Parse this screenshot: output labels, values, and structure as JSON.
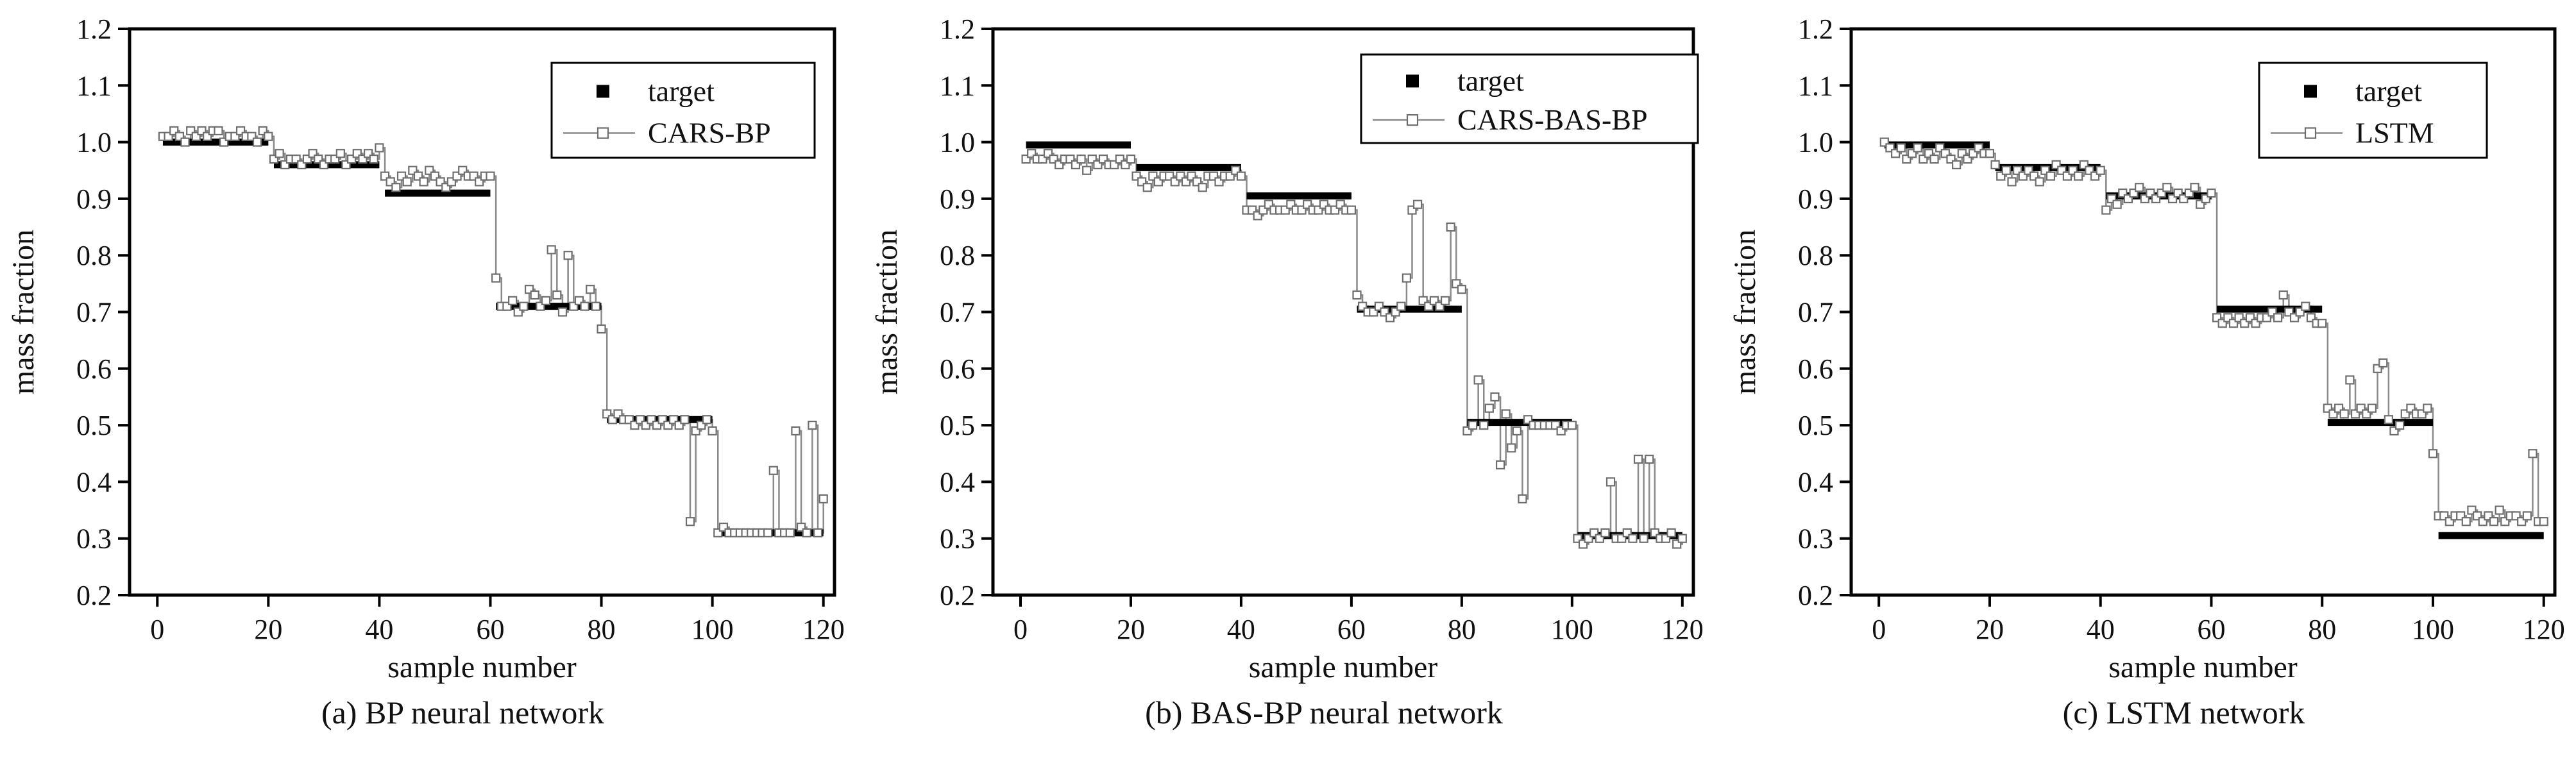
{
  "chart_data": [
    {
      "type": "line",
      "caption": "(a) BP neural network",
      "xlabel": "sample number",
      "ylabel": "mass fraction",
      "xlim": [
        -5,
        122
      ],
      "ylim": [
        0.2,
        1.2
      ],
      "xticks": [
        "0",
        "20",
        "40",
        "60",
        "80",
        "100",
        "120"
      ],
      "yticks": [
        "0.2",
        "0.3",
        "0.4",
        "0.5",
        "0.6",
        "0.7",
        "0.8",
        "0.9",
        "1.0",
        "1.1",
        "1.2"
      ],
      "legend_position": "top-right",
      "target": {
        "name": "target",
        "segments": [
          {
            "x_start": 1,
            "x_end": 20,
            "y": 1.0
          },
          {
            "x_start": 21,
            "x_end": 40,
            "y": 0.96
          },
          {
            "x_start": 41,
            "x_end": 60,
            "y": 0.91
          },
          {
            "x_start": 61,
            "x_end": 80,
            "y": 0.71
          },
          {
            "x_start": 81,
            "x_end": 100,
            "y": 0.51
          },
          {
            "x_start": 101,
            "x_end": 120,
            "y": 0.31
          }
        ]
      },
      "prediction": {
        "name": "CARS-BP",
        "x_start": 1,
        "values": [
          1.01,
          1.01,
          1.02,
          1.01,
          1.0,
          1.02,
          1.01,
          1.02,
          1.01,
          1.02,
          1.02,
          1.0,
          1.01,
          1.01,
          1.02,
          1.01,
          1.01,
          1.0,
          1.02,
          1.01,
          0.97,
          0.98,
          0.96,
          0.97,
          0.97,
          0.96,
          0.97,
          0.98,
          0.97,
          0.96,
          0.97,
          0.97,
          0.98,
          0.96,
          0.97,
          0.98,
          0.97,
          0.98,
          0.97,
          0.99,
          0.94,
          0.93,
          0.92,
          0.94,
          0.93,
          0.95,
          0.94,
          0.93,
          0.95,
          0.94,
          0.93,
          0.92,
          0.93,
          0.94,
          0.95,
          0.94,
          0.94,
          0.93,
          0.94,
          0.94,
          0.76,
          0.71,
          0.71,
          0.72,
          0.7,
          0.71,
          0.74,
          0.73,
          0.71,
          0.72,
          0.81,
          0.73,
          0.7,
          0.8,
          0.71,
          0.72,
          0.71,
          0.74,
          0.71,
          0.67,
          0.52,
          0.51,
          0.52,
          0.51,
          0.51,
          0.5,
          0.51,
          0.5,
          0.51,
          0.5,
          0.51,
          0.5,
          0.51,
          0.5,
          0.51,
          0.33,
          0.49,
          0.5,
          0.51,
          0.49,
          0.31,
          0.32,
          0.31,
          0.31,
          0.31,
          0.31,
          0.31,
          0.31,
          0.31,
          0.31,
          0.42,
          0.31,
          0.31,
          0.31,
          0.49,
          0.32,
          0.31,
          0.5,
          0.31,
          0.37
        ]
      }
    },
    {
      "type": "line",
      "caption": "(b) BAS-BP neural network",
      "xlabel": "sample number",
      "ylabel": "mass fraction",
      "xlim": [
        -5,
        122
      ],
      "ylim": [
        0.2,
        1.2
      ],
      "xticks": [
        "0",
        "20",
        "40",
        "60",
        "80",
        "100",
        "120"
      ],
      "yticks": [
        "0.2",
        "0.3",
        "0.4",
        "0.5",
        "0.6",
        "0.7",
        "0.8",
        "0.9",
        "1.0",
        "1.1",
        "1.2"
      ],
      "legend_position": "top-right",
      "target": {
        "name": "target",
        "segments": [
          {
            "x_start": 1,
            "x_end": 20,
            "y": 0.995
          },
          {
            "x_start": 21,
            "x_end": 40,
            "y": 0.955
          },
          {
            "x_start": 41,
            "x_end": 60,
            "y": 0.905
          },
          {
            "x_start": 61,
            "x_end": 80,
            "y": 0.705
          },
          {
            "x_start": 81,
            "x_end": 100,
            "y": 0.505
          },
          {
            "x_start": 101,
            "x_end": 120,
            "y": 0.305
          }
        ]
      },
      "prediction": {
        "name": "CARS-BAS-BP",
        "x_start": 1,
        "values": [
          0.97,
          0.98,
          0.97,
          0.97,
          0.98,
          0.97,
          0.96,
          0.97,
          0.97,
          0.96,
          0.97,
          0.95,
          0.97,
          0.96,
          0.97,
          0.96,
          0.96,
          0.97,
          0.96,
          0.97,
          0.94,
          0.93,
          0.92,
          0.94,
          0.93,
          0.94,
          0.94,
          0.93,
          0.94,
          0.93,
          0.94,
          0.93,
          0.92,
          0.94,
          0.94,
          0.93,
          0.94,
          0.94,
          0.95,
          0.94,
          0.88,
          0.88,
          0.87,
          0.88,
          0.89,
          0.88,
          0.88,
          0.88,
          0.89,
          0.88,
          0.88,
          0.89,
          0.88,
          0.88,
          0.89,
          0.88,
          0.88,
          0.89,
          0.88,
          0.88,
          0.73,
          0.71,
          0.7,
          0.7,
          0.71,
          0.7,
          0.69,
          0.7,
          0.71,
          0.76,
          0.88,
          0.89,
          0.72,
          0.71,
          0.72,
          0.71,
          0.72,
          0.85,
          0.75,
          0.74,
          0.49,
          0.5,
          0.58,
          0.5,
          0.53,
          0.55,
          0.43,
          0.52,
          0.46,
          0.49,
          0.37,
          0.51,
          0.5,
          0.5,
          0.5,
          0.5,
          0.5,
          0.49,
          0.5,
          0.5,
          0.3,
          0.29,
          0.3,
          0.31,
          0.3,
          0.31,
          0.4,
          0.3,
          0.3,
          0.31,
          0.3,
          0.44,
          0.3,
          0.44,
          0.31,
          0.3,
          0.3,
          0.31,
          0.29,
          0.3
        ]
      }
    },
    {
      "type": "line",
      "caption": "(c) LSTM network",
      "xlabel": "sample number",
      "ylabel": "mass fraction",
      "xlim": [
        -5,
        122
      ],
      "ylim": [
        0.2,
        1.2
      ],
      "xticks": [
        "0",
        "20",
        "40",
        "60",
        "80",
        "100",
        "120"
      ],
      "yticks": [
        "0.2",
        "0.3",
        "0.4",
        "0.5",
        "0.6",
        "0.7",
        "0.8",
        "0.9",
        "1.0",
        "1.1",
        "1.2"
      ],
      "legend_position": "top-right",
      "target": {
        "name": "target",
        "segments": [
          {
            "x_start": 1,
            "x_end": 20,
            "y": 0.995
          },
          {
            "x_start": 21,
            "x_end": 40,
            "y": 0.955
          },
          {
            "x_start": 41,
            "x_end": 60,
            "y": 0.905
          },
          {
            "x_start": 61,
            "x_end": 80,
            "y": 0.705
          },
          {
            "x_start": 81,
            "x_end": 100,
            "y": 0.505
          },
          {
            "x_start": 101,
            "x_end": 120,
            "y": 0.305
          }
        ]
      },
      "prediction": {
        "name": "LSTM",
        "x_start": 1,
        "values": [
          1.0,
          0.99,
          0.98,
          0.99,
          0.97,
          0.98,
          0.99,
          0.97,
          0.98,
          0.97,
          0.99,
          0.98,
          0.97,
          0.96,
          0.98,
          0.97,
          0.98,
          0.99,
          0.98,
          0.98,
          0.96,
          0.94,
          0.95,
          0.93,
          0.95,
          0.94,
          0.95,
          0.94,
          0.93,
          0.95,
          0.94,
          0.96,
          0.95,
          0.94,
          0.95,
          0.94,
          0.96,
          0.95,
          0.94,
          0.95,
          0.88,
          0.9,
          0.89,
          0.91,
          0.9,
          0.91,
          0.92,
          0.9,
          0.91,
          0.9,
          0.91,
          0.92,
          0.9,
          0.91,
          0.9,
          0.91,
          0.92,
          0.89,
          0.9,
          0.91,
          0.69,
          0.68,
          0.69,
          0.68,
          0.69,
          0.68,
          0.69,
          0.68,
          0.69,
          0.69,
          0.7,
          0.69,
          0.73,
          0.7,
          0.69,
          0.7,
          0.71,
          0.69,
          0.68,
          0.68,
          0.53,
          0.52,
          0.53,
          0.52,
          0.58,
          0.52,
          0.53,
          0.52,
          0.53,
          0.6,
          0.61,
          0.51,
          0.49,
          0.5,
          0.52,
          0.53,
          0.52,
          0.52,
          0.53,
          0.45,
          0.34,
          0.34,
          0.33,
          0.34,
          0.34,
          0.33,
          0.35,
          0.34,
          0.33,
          0.34,
          0.33,
          0.35,
          0.33,
          0.34,
          0.34,
          0.33,
          0.34,
          0.45,
          0.33,
          0.33
        ]
      }
    }
  ]
}
